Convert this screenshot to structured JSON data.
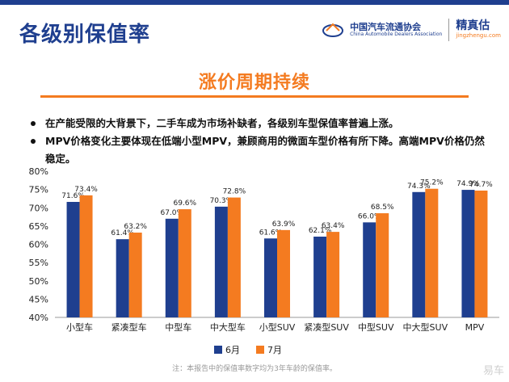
{
  "header": {
    "title": "各级别保值率",
    "logo_cada_cn": "中国汽车流通协会",
    "logo_cada_en": "China Automobile Dealers Association",
    "logo_jzg_cn": "精真估",
    "logo_jzg_en": "jingzhengu.com"
  },
  "hero": {
    "title": "涨价周期持续"
  },
  "bullets": [
    "在产能受限的大背景下，二手车成为市场补缺者，各级别车型保值率普遍上涨。",
    "MPV价格变化主要体现在低端小型MPV，兼顾商用的微面车型价格有所下降。高端MPV价格仍然稳定。"
  ],
  "chart_data": {
    "type": "bar",
    "categories": [
      "小型车",
      "紧凑型车",
      "中型车",
      "中大型车",
      "小型SUV",
      "紧凑型SUV",
      "中型SUV",
      "中大型SUV",
      "MPV"
    ],
    "series": [
      {
        "name": "6月",
        "color": "#1f3f8f",
        "values": [
          71.6,
          61.4,
          67.0,
          70.3,
          61.6,
          62.1,
          66.0,
          74.3,
          74.9
        ]
      },
      {
        "name": "7月",
        "color": "#f47b20",
        "values": [
          73.4,
          63.2,
          69.6,
          72.8,
          63.9,
          63.4,
          68.5,
          75.2,
          74.7
        ]
      }
    ],
    "ylim": [
      40,
      80
    ],
    "yticks": [
      "40%",
      "45%",
      "50%",
      "55%",
      "60%",
      "65%",
      "70%",
      "75%",
      "80%"
    ],
    "value_labels": [
      [
        "71.6%",
        "61.4%",
        "67.0%",
        "70.3%",
        "61.6%",
        "62.1%",
        "66.0%",
        "74.3%",
        "74.9%"
      ],
      [
        "73.4%",
        "63.2%",
        "69.6%",
        "72.8%",
        "63.9%",
        "63.4%",
        "68.5%",
        "75.2%",
        "74.7%"
      ]
    ],
    "legend_position": "bottom",
    "grid": false
  },
  "footer": {
    "note": "注：本报告中的保值率数字均为3年车龄的保值率。",
    "watermark": "易车"
  }
}
